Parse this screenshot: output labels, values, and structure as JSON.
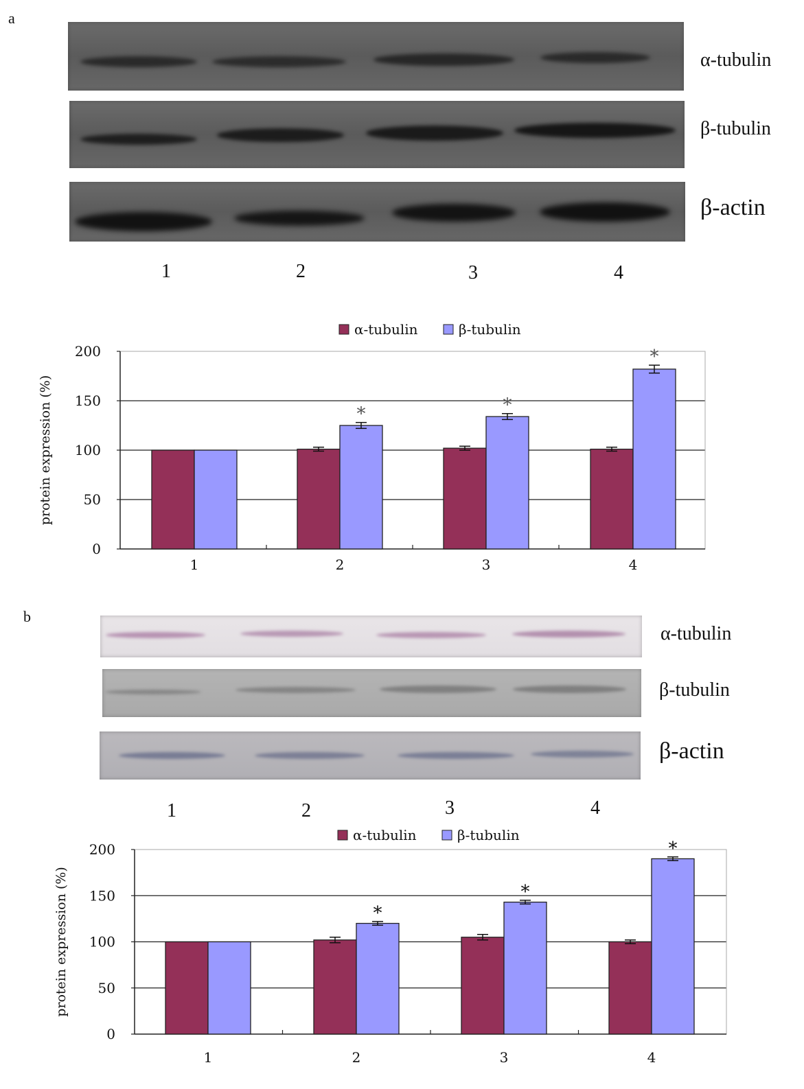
{
  "panels": [
    {
      "letter": "a",
      "blot_labels": [
        "α-tubulin",
        "β-tubulin",
        "β-actin"
      ],
      "lane_labels": [
        "1",
        "2",
        "3",
        "4"
      ]
    },
    {
      "letter": "b",
      "blot_labels": [
        "α-tubulin",
        "β-tubulin",
        "β-actin"
      ],
      "lane_labels": [
        "1",
        "2",
        "3",
        "4"
      ]
    }
  ],
  "colors": {
    "alpha": "#943058",
    "beta": "#9999ff"
  },
  "chart_data": [
    {
      "type": "bar",
      "categories": [
        "1",
        "2",
        "3",
        "4"
      ],
      "series": [
        {
          "name": "α-tubulin",
          "values": [
            100,
            101,
            102,
            101
          ],
          "errors": [
            0,
            2,
            2,
            2
          ]
        },
        {
          "name": "β-tubulin",
          "values": [
            100,
            125,
            134,
            182
          ],
          "errors": [
            0,
            3,
            3,
            4
          ]
        }
      ],
      "significance": [
        false,
        true,
        true,
        true
      ],
      "significance_marker": "*",
      "title": "",
      "xlabel": "",
      "ylabel": "protein expression (%)",
      "ylim": [
        0,
        200
      ],
      "yticks": [
        0,
        50,
        100,
        150,
        200
      ],
      "grid": true,
      "legend": "top-center"
    },
    {
      "type": "bar",
      "categories": [
        "1",
        "2",
        "3",
        "4"
      ],
      "series": [
        {
          "name": "α-tubulin",
          "values": [
            100,
            102,
            105,
            100
          ],
          "errors": [
            0,
            3,
            3,
            2
          ]
        },
        {
          "name": "β-tubulin",
          "values": [
            100,
            120,
            143,
            190
          ],
          "errors": [
            0,
            2,
            2,
            2
          ]
        }
      ],
      "significance": [
        false,
        true,
        true,
        true
      ],
      "significance_marker": "*",
      "title": "",
      "xlabel": "",
      "ylabel": "protein expression (%)",
      "ylim": [
        0,
        200
      ],
      "yticks": [
        0,
        50,
        100,
        150,
        200
      ],
      "grid": true,
      "legend": "top-center"
    }
  ]
}
